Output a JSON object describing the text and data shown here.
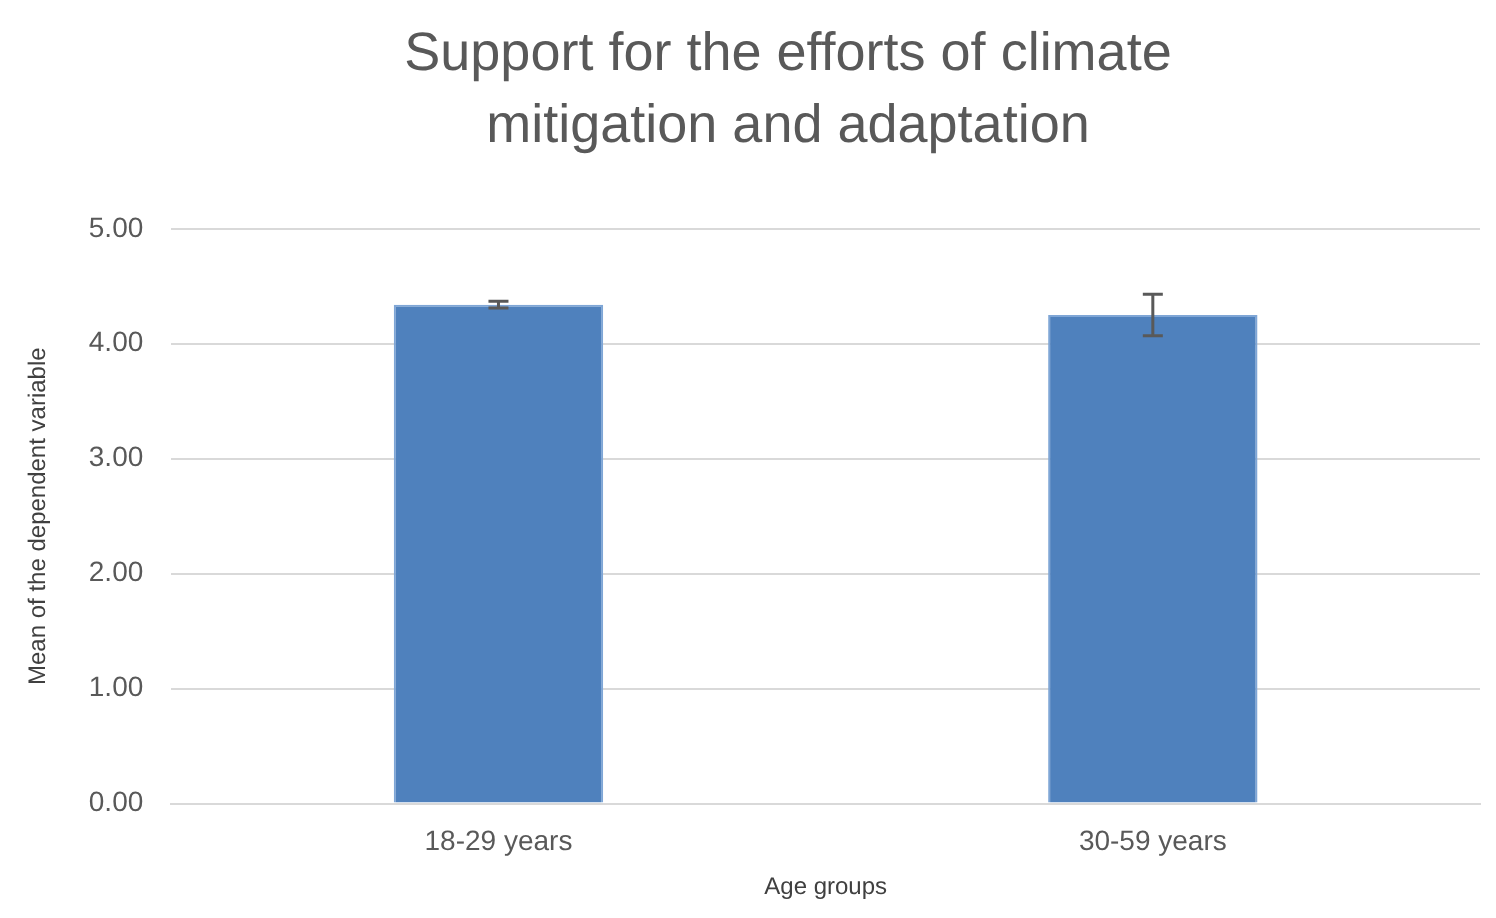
{
  "chart_data": {
    "type": "bar",
    "title": "Support for the efforts of climate mitigation and adaptation",
    "xlabel": "Age groups",
    "ylabel": "Mean of the dependent variable",
    "categories": [
      "18-29 years",
      "30-59 years"
    ],
    "values": [
      4.34,
      4.25
    ],
    "errors": [
      0.03,
      0.18
    ],
    "color": "#4f81bd",
    "ylim": [
      0,
      5
    ],
    "yticks": [
      {
        "value": 0,
        "label": "0.00"
      },
      {
        "value": 1,
        "label": "1.00"
      },
      {
        "value": 2,
        "label": "2.00"
      },
      {
        "value": 3,
        "label": "3.00"
      },
      {
        "value": 4,
        "label": "4.00"
      },
      {
        "value": 5,
        "label": "5.00"
      }
    ],
    "grid": "y"
  }
}
